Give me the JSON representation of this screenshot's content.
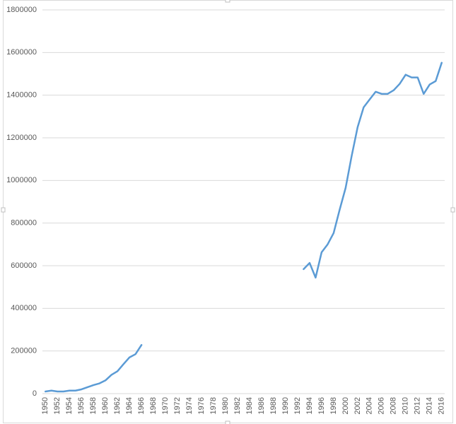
{
  "chart_data": {
    "type": "line",
    "categories": [
      "1950",
      null,
      "1952",
      null,
      "1954",
      null,
      "1956",
      null,
      "1958",
      null,
      "1960",
      null,
      "1962",
      null,
      "1964",
      null,
      "1966",
      null,
      "1968",
      null,
      "1970",
      null,
      "1972",
      null,
      "1974",
      null,
      "1976",
      null,
      "1978",
      null,
      "1980",
      null,
      "1982",
      null,
      "1984",
      null,
      "1986",
      null,
      "1988",
      null,
      "1990",
      null,
      "1992",
      null,
      "1994",
      null,
      "1996",
      null,
      "1998",
      null,
      "2000",
      null,
      "2002",
      null,
      "2004",
      null,
      "2006",
      null,
      "2008",
      null,
      "2010",
      null,
      "2012",
      null,
      "2014",
      null,
      "2016"
    ],
    "series": [
      {
        "color": "#5b9bd5",
        "values": [
          10000,
          14000,
          10000,
          10000,
          14000,
          14000,
          20000,
          30000,
          40000,
          48000,
          62000,
          88000,
          105000,
          138000,
          170000,
          185000,
          228000,
          null,
          null,
          null,
          null,
          null,
          null,
          null,
          null,
          null,
          null,
          null,
          null,
          null,
          null,
          null,
          null,
          null,
          null,
          null,
          null,
          null,
          null,
          null,
          null,
          null,
          null,
          584000,
          613000,
          544000,
          663000,
          700000,
          753000,
          862000,
          965000,
          1114000,
          1250000,
          1343000,
          1380000,
          1416000,
          1406000,
          1406000,
          1423000,
          1453000,
          1496000,
          1483000,
          1483000,
          1406000,
          1450000,
          1466000,
          1552000
        ]
      }
    ],
    "ylim": [
      0,
      1800000
    ],
    "yticks": [
      0,
      200000,
      400000,
      600000,
      800000,
      1000000,
      1200000,
      1400000,
      1600000,
      1800000
    ],
    "grid": true
  }
}
